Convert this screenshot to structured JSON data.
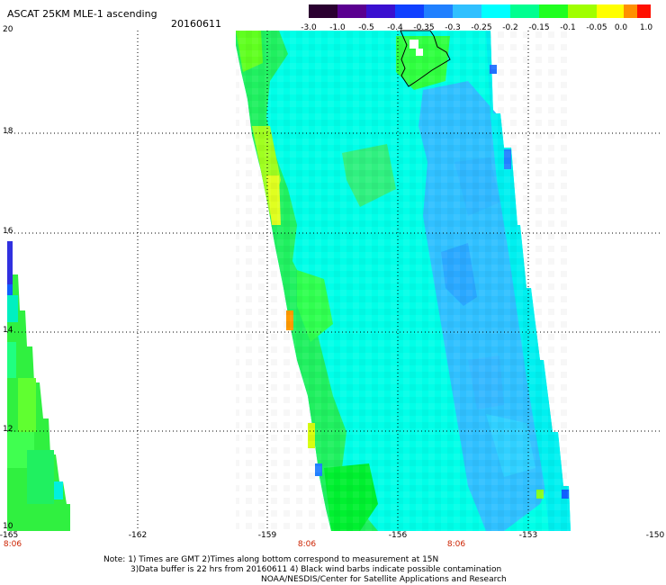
{
  "title": "ASCAT 25KM MLE-1 ascending",
  "date": "20160611",
  "colorbar": {
    "labels": [
      "-3.0",
      "-1.0",
      "-0.5",
      "-0.4",
      "-0.35",
      "-0.3",
      "-0.25",
      "-0.2",
      "-0.15",
      "-0.1",
      "-0.05",
      "0.0",
      "1.0"
    ],
    "colors": [
      "#2a0030",
      "#5a0090",
      "#3a10d0",
      "#1040ff",
      "#2080ff",
      "#30c0ff",
      "#00ffff",
      "#00ff90",
      "#20ff20",
      "#a0ff00",
      "#ffff00",
      "#ff9000",
      "#ff1000"
    ]
  },
  "axes": {
    "lat_labels": [
      "20",
      "18",
      "16",
      "14",
      "12",
      "10"
    ],
    "lon_labels": [
      "-165",
      "-162",
      "-159",
      "-156",
      "-153",
      "-150"
    ],
    "time_labels": [
      "8:06",
      "8:06",
      "8:06"
    ]
  },
  "notes": {
    "line1": "Note: 1) Times are GMT 2)Times along bottom correspond to measurement at 15N",
    "line2": "3)Data buffer is 22 hrs from 20160611 4) Black wind barbs indicate possible contamination",
    "line3": "NOAA/NESDIS/Center for Satellite Applications and Research"
  }
}
